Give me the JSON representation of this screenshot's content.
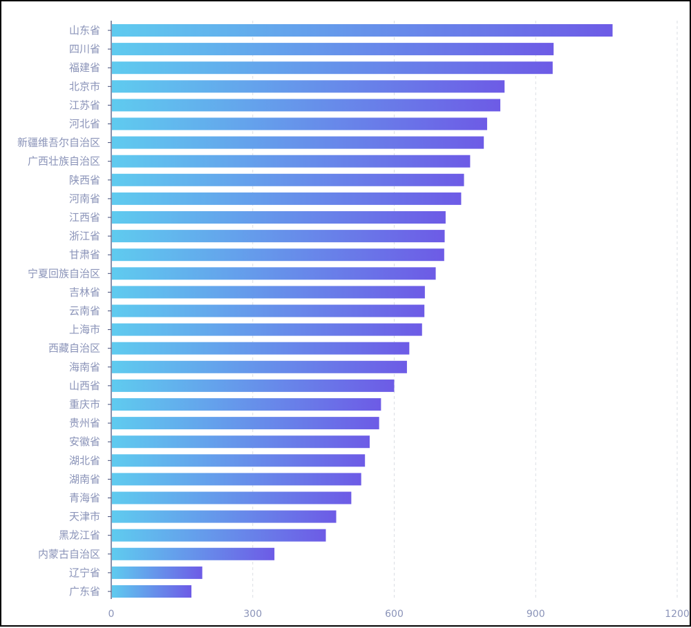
{
  "chart_data": {
    "type": "bar",
    "orientation": "horizontal",
    "title": "",
    "xlabel": "",
    "ylabel": "",
    "categories": [
      "山东省",
      "四川省",
      "福建省",
      "北京市",
      "江苏省",
      "河北省",
      "新疆维吾尔自治区",
      "广西壮族自治区",
      "陕西省",
      "河南省",
      "江西省",
      "浙江省",
      "甘肃省",
      "宁夏回族自治区",
      "吉林省",
      "云南省",
      "上海市",
      "西藏自治区",
      "海南省",
      "山西省",
      "重庆市",
      "贵州省",
      "安徽省",
      "湖北省",
      "湖南省",
      "青海省",
      "天津市",
      "黑龙江省",
      "内蒙古自治区",
      "辽宁省",
      "广东省"
    ],
    "series": [
      {
        "values": [
          1063,
          938,
          936,
          834,
          825,
          797,
          790,
          761,
          748,
          742,
          709,
          707,
          706,
          688,
          665,
          664,
          659,
          632,
          627,
          600,
          572,
          568,
          548,
          538,
          530,
          509,
          477,
          455,
          346,
          193,
          170
        ]
      }
    ],
    "xlim": [
      0,
      1200
    ],
    "xticks": [
      0,
      300,
      600,
      900,
      1200
    ],
    "grid": "vertical-dashed",
    "legend": "none",
    "colors": {
      "bar_start": "#5FCBEF",
      "bar_end": "#6D5BE6",
      "label": "#8A93B8",
      "axis": "#3A4673",
      "grid": "#DADDE3"
    }
  }
}
